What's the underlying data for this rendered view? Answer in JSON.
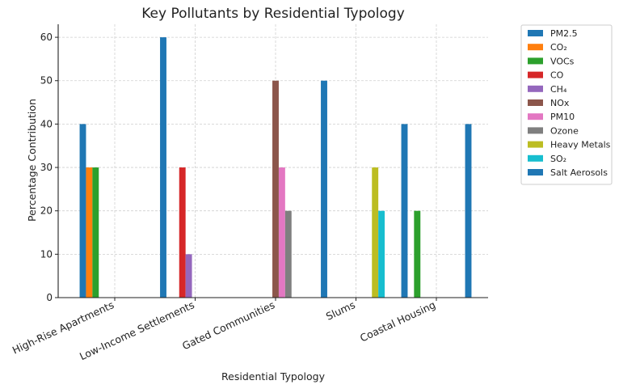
{
  "chart_data": {
    "type": "bar",
    "title": "Key Pollutants by Residential Typology",
    "xlabel": "Residential Typology",
    "ylabel": "Percentage Contribution",
    "ylim": [
      0,
      63
    ],
    "yticks": [
      0,
      10,
      20,
      30,
      40,
      50,
      60
    ],
    "grid": true,
    "legend_position": "outside-right",
    "categories": [
      "High-Rise Apartments",
      "Low-Income Settlements",
      "Gated Communities",
      "Slums",
      "Coastal Housing"
    ],
    "series": [
      {
        "name": "PM2.5",
        "color": "#1f77b4",
        "values": [
          40,
          60,
          null,
          50,
          40
        ]
      },
      {
        "name": "CO₂",
        "color": "#ff7f0e",
        "values": [
          30,
          null,
          null,
          null,
          null
        ]
      },
      {
        "name": "VOCs",
        "color": "#2ca02c",
        "values": [
          30,
          null,
          null,
          null,
          20
        ]
      },
      {
        "name": "CO",
        "color": "#d62728",
        "values": [
          null,
          30,
          null,
          null,
          null
        ]
      },
      {
        "name": "CH₄",
        "color": "#9467bd",
        "values": [
          null,
          10,
          null,
          null,
          null
        ]
      },
      {
        "name": "NOx",
        "color": "#8c564b",
        "values": [
          null,
          null,
          50,
          null,
          null
        ]
      },
      {
        "name": "PM10",
        "color": "#e377c2",
        "values": [
          null,
          null,
          30,
          null,
          null
        ]
      },
      {
        "name": "Ozone",
        "color": "#7f7f7f",
        "values": [
          null,
          null,
          20,
          null,
          null
        ]
      },
      {
        "name": "Heavy Metals",
        "color": "#bcbd22",
        "values": [
          null,
          null,
          null,
          30,
          null
        ]
      },
      {
        "name": "SO₂",
        "color": "#17becf",
        "values": [
          null,
          null,
          null,
          20,
          null
        ]
      },
      {
        "name": "Salt Aerosols",
        "color": "#1f77b4",
        "values": [
          null,
          null,
          null,
          null,
          40
        ]
      }
    ]
  }
}
